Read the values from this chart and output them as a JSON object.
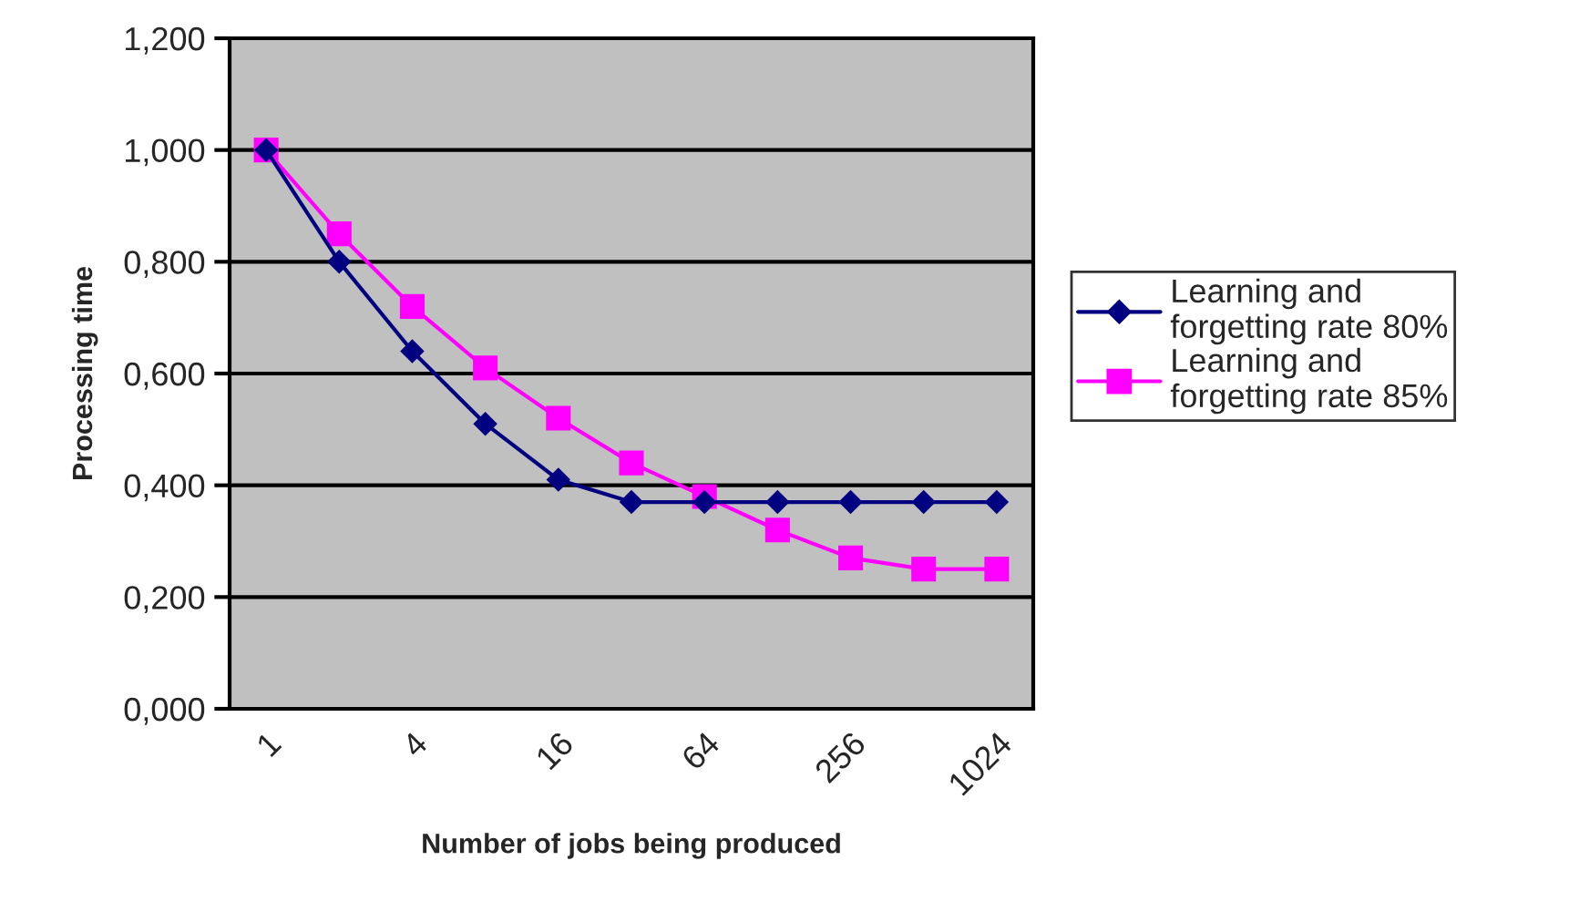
{
  "chart_data": {
    "type": "line",
    "xlabel": "Number of jobs being produced",
    "ylabel": "Processing time",
    "categories": [
      "1",
      null,
      "4",
      null,
      "16",
      null,
      "64",
      null,
      "256",
      null,
      "1024"
    ],
    "series": [
      {
        "name": "Learning and forgetting rate 80%",
        "color": "#000080",
        "marker": "diamond",
        "values": [
          1.0,
          0.8,
          0.64,
          0.51,
          0.41,
          0.37,
          0.37,
          0.37,
          0.37,
          0.37,
          0.37
        ]
      },
      {
        "name": "Learning and forgetting rate 85%",
        "color": "#ff00ff",
        "marker": "square",
        "values": [
          1.0,
          0.85,
          0.72,
          0.61,
          0.52,
          0.44,
          0.38,
          0.32,
          0.27,
          0.25,
          0.25
        ]
      }
    ],
    "ylim": [
      0,
      1.2
    ],
    "yticks": [
      {
        "value": 0,
        "label": "0,000"
      },
      {
        "value": 0.2,
        "label": "0,200"
      },
      {
        "value": 0.4,
        "label": "0,400"
      },
      {
        "value": 0.6,
        "label": "0,600"
      },
      {
        "value": 0.8,
        "label": "0,800"
      },
      {
        "value": 1.0,
        "label": "1,000"
      },
      {
        "value": 1.2,
        "label": "1,200"
      }
    ],
    "grid": "y",
    "legend": "right",
    "line_style": "solid"
  }
}
